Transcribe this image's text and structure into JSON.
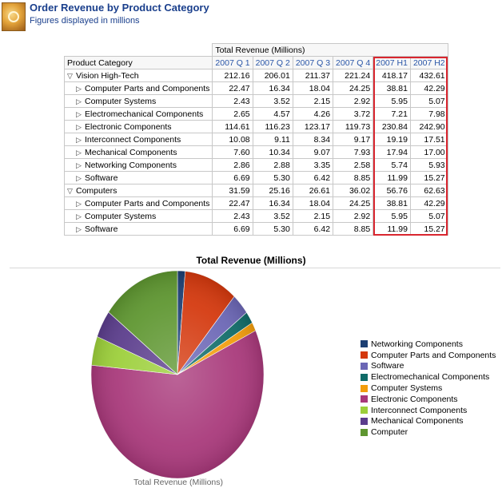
{
  "header": {
    "title": "Order Revenue by Product Category",
    "subtitle": "Figures displayed in millions",
    "icon": "report-icon"
  },
  "table": {
    "group_header": "Total Revenue (Millions)",
    "row_header": "Product Category",
    "columns": [
      "2007 Q 1",
      "2007 Q 2",
      "2007 Q 3",
      "2007 Q 4",
      "2007 H1",
      "2007 H2"
    ],
    "rows": [
      {
        "label": "Vision High-Tech",
        "expanded": true,
        "level": 0,
        "values": [
          "212.16",
          "206.01",
          "211.37",
          "221.24",
          "418.17",
          "432.61"
        ]
      },
      {
        "label": "Computer Parts and Components",
        "expanded": false,
        "level": 1,
        "values": [
          "22.47",
          "16.34",
          "18.04",
          "24.25",
          "38.81",
          "42.29"
        ]
      },
      {
        "label": "Computer Systems",
        "expanded": false,
        "level": 1,
        "values": [
          "2.43",
          "3.52",
          "2.15",
          "2.92",
          "5.95",
          "5.07"
        ]
      },
      {
        "label": "Electromechanical Components",
        "expanded": false,
        "level": 1,
        "values": [
          "2.65",
          "4.57",
          "4.26",
          "3.72",
          "7.21",
          "7.98"
        ]
      },
      {
        "label": "Electronic Components",
        "expanded": false,
        "level": 1,
        "values": [
          "114.61",
          "116.23",
          "123.17",
          "119.73",
          "230.84",
          "242.90"
        ]
      },
      {
        "label": "Interconnect Components",
        "expanded": false,
        "level": 1,
        "values": [
          "10.08",
          "9.11",
          "8.34",
          "9.17",
          "19.19",
          "17.51"
        ]
      },
      {
        "label": "Mechanical Components",
        "expanded": false,
        "level": 1,
        "values": [
          "7.60",
          "10.34",
          "9.07",
          "7.93",
          "17.94",
          "17.00"
        ]
      },
      {
        "label": "Networking Components",
        "expanded": false,
        "level": 1,
        "values": [
          "2.86",
          "2.88",
          "3.35",
          "2.58",
          "5.74",
          "5.93"
        ]
      },
      {
        "label": "Software",
        "expanded": false,
        "level": 1,
        "values": [
          "6.69",
          "5.30",
          "6.42",
          "8.85",
          "11.99",
          "15.27"
        ]
      },
      {
        "label": "Computers",
        "expanded": true,
        "level": 0,
        "values": [
          "31.59",
          "25.16",
          "26.61",
          "36.02",
          "56.76",
          "62.63"
        ]
      },
      {
        "label": "Computer Parts and Components",
        "expanded": false,
        "level": 1,
        "values": [
          "22.47",
          "16.34",
          "18.04",
          "24.25",
          "38.81",
          "42.29"
        ]
      },
      {
        "label": "Computer Systems",
        "expanded": false,
        "level": 1,
        "values": [
          "2.43",
          "3.52",
          "2.15",
          "2.92",
          "5.95",
          "5.07"
        ]
      },
      {
        "label": "Software",
        "expanded": false,
        "level": 1,
        "values": [
          "6.69",
          "5.30",
          "6.42",
          "8.85",
          "11.99",
          "15.27"
        ]
      }
    ],
    "highlight_color": "#d9262f"
  },
  "chart_data": {
    "type": "pie",
    "title": "Total Revenue (Millions)",
    "xlabel": "Total Revenue (Millions)",
    "legend_position": "right",
    "slices": [
      {
        "name": "Networking Components",
        "value": 11.67,
        "color": "#1c3f73"
      },
      {
        "name": "Computer Parts and Components",
        "value": 81.1,
        "color": "#d4380d"
      },
      {
        "name": "Software",
        "value": 27.26,
        "color": "#6b66b5"
      },
      {
        "name": "Electromechanical Components",
        "value": 15.19,
        "color": "#0f6b68"
      },
      {
        "name": "Computer Systems",
        "value": 11.02,
        "color": "#f29d0c"
      },
      {
        "name": "Electronic Components",
        "value": 473.74,
        "color": "#a8387a"
      },
      {
        "name": "Interconnect Components",
        "value": 36.7,
        "color": "#9ccf3a"
      },
      {
        "name": "Mechanical Components",
        "value": 34.94,
        "color": "#5b3d8c"
      },
      {
        "name": "Computer",
        "value": 119.39,
        "color": "#5e9630"
      }
    ]
  }
}
